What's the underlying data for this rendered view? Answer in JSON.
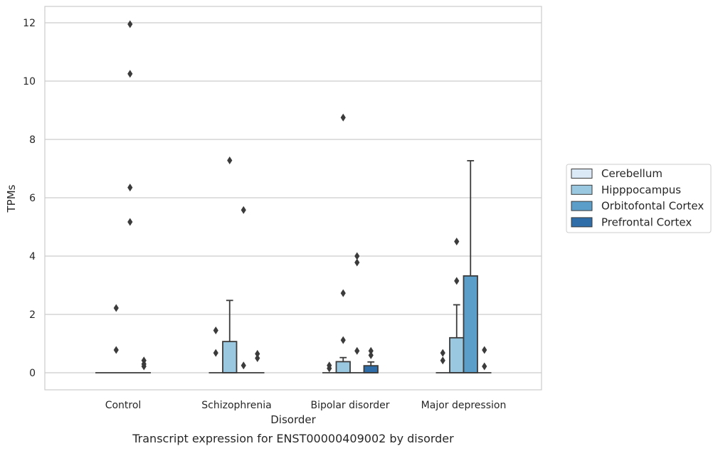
{
  "caption": "Transcript expression for ENST00000409002 by disorder",
  "chart_data": {
    "type": "box",
    "title": "",
    "xlabel": "Disorder",
    "ylabel": "TPMs",
    "ylim": [
      -0.58,
      12.55
    ],
    "yticks": [
      0,
      2,
      4,
      6,
      8,
      10,
      12
    ],
    "grid": "horizontal",
    "legend_placement": "center-right",
    "categories": [
      "Control",
      "Schizophrenia",
      "Bipolar disorder",
      "Major depression"
    ],
    "series": [
      {
        "name": "Cerebellum",
        "color": "#dbe9f6",
        "boxes": [
          {
            "q1": 0,
            "median": 0,
            "q3": 0,
            "whisker_low": 0,
            "whisker_high": 0,
            "outliers": []
          },
          {
            "q1": 0,
            "median": 0,
            "q3": 0,
            "whisker_low": 0,
            "whisker_high": 0,
            "outliers": [
              1.45,
              0.68
            ]
          },
          {
            "q1": 0,
            "median": 0,
            "q3": 0,
            "whisker_low": 0,
            "whisker_high": 0,
            "outliers": [
              0.25,
              0.15
            ]
          },
          {
            "q1": 0,
            "median": 0,
            "q3": 0,
            "whisker_low": 0,
            "whisker_high": 0,
            "outliers": [
              0.68,
              0.42
            ]
          }
        ]
      },
      {
        "name": "Hipppocampus",
        "color": "#9ac8e0",
        "boxes": [
          {
            "q1": 0,
            "median": 0,
            "q3": 0,
            "whisker_low": 0,
            "whisker_high": 0,
            "outliers": [
              2.22,
              0.78
            ]
          },
          {
            "q1": 0,
            "median": 0,
            "q3": 1.07,
            "whisker_low": 0,
            "whisker_high": 2.48,
            "outliers": [
              7.28
            ]
          },
          {
            "q1": 0,
            "median": 0,
            "q3": 0.38,
            "whisker_low": 0,
            "whisker_high": 0.52,
            "outliers": [
              8.75,
              2.73,
              1.12
            ]
          },
          {
            "q1": 0,
            "median": 0,
            "q3": 1.2,
            "whisker_low": 0,
            "whisker_high": 2.33,
            "outliers": [
              4.5,
              3.15
            ]
          }
        ]
      },
      {
        "name": "Orbitofontal Cortex",
        "color": "#5a9ec9",
        "boxes": [
          {
            "q1": 0,
            "median": 0,
            "q3": 0,
            "whisker_low": 0,
            "whisker_high": 0,
            "outliers": [
              11.95,
              10.25,
              6.35,
              5.17
            ]
          },
          {
            "q1": 0,
            "median": 0,
            "q3": 0,
            "whisker_low": 0,
            "whisker_high": 0,
            "outliers": [
              5.58,
              0.25
            ]
          },
          {
            "q1": 0,
            "median": 0,
            "q3": 0,
            "whisker_low": 0,
            "whisker_high": 0,
            "outliers": [
              4.0,
              3.78,
              0.75
            ]
          },
          {
            "q1": 0,
            "median": 0,
            "q3": 3.32,
            "whisker_low": 0,
            "whisker_high": 7.27,
            "outliers": []
          }
        ]
      },
      {
        "name": "Prefrontal Cortex",
        "color": "#2e6da8",
        "boxes": [
          {
            "q1": 0,
            "median": 0,
            "q3": 0,
            "whisker_low": 0,
            "whisker_high": 0,
            "outliers": [
              0.42,
              0.3,
              0.22
            ]
          },
          {
            "q1": 0,
            "median": 0,
            "q3": 0,
            "whisker_low": 0,
            "whisker_high": 0,
            "outliers": [
              0.65,
              0.5
            ]
          },
          {
            "q1": 0,
            "median": 0,
            "q3": 0.24,
            "whisker_low": 0,
            "whisker_high": 0.37,
            "outliers": [
              0.75,
              0.6
            ]
          },
          {
            "q1": 0,
            "median": 0,
            "q3": 0,
            "whisker_low": 0,
            "whisker_high": 0,
            "outliers": [
              0.78,
              0.22
            ]
          }
        ]
      }
    ]
  }
}
